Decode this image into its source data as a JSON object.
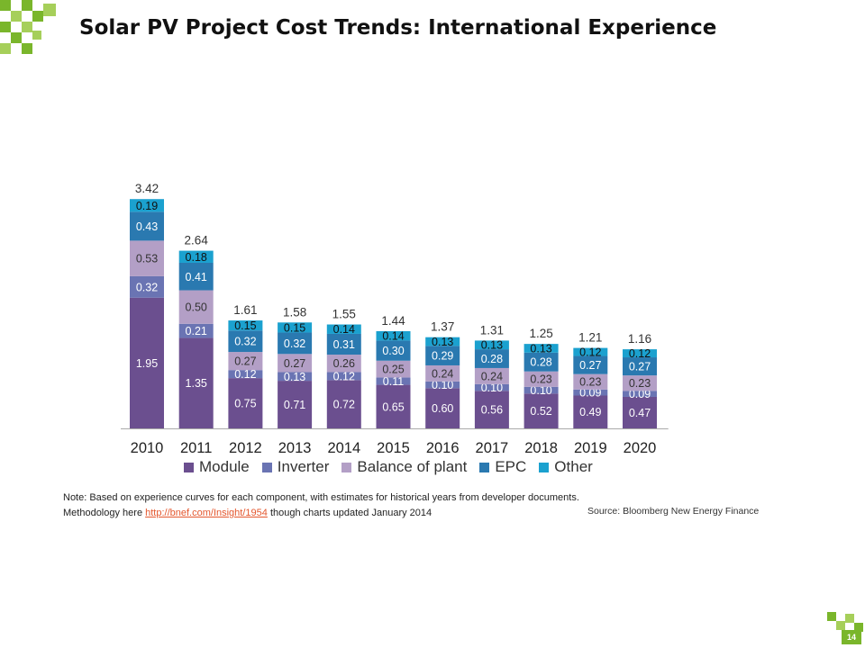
{
  "slide": {
    "title": "Solar PV Project Cost Trends: International Experience",
    "page_number": "14"
  },
  "note": {
    "text_before": "Note: Based on experience curves for each component, with estimates for historical years from developer documents. Methodology here ",
    "link": "http://bnef.com/Insight/1954",
    "text_after": " though charts updated January 2014"
  },
  "source": "Source: Bloomberg New Energy Finance",
  "colors": {
    "brand_green": "#7ab62b",
    "module": "#6b4f8f",
    "inverter": "#6a74b3",
    "balance_of_plant": "#b39fc6",
    "epc": "#2a79b0",
    "other": "#1ba1cf"
  },
  "chart_data": {
    "type": "bar",
    "stacked": true,
    "title": "",
    "xlabel": "",
    "ylabel": "",
    "categories": [
      "2010",
      "2011",
      "2012",
      "2013",
      "2014",
      "2015",
      "2016",
      "2017",
      "2018",
      "2019",
      "2020"
    ],
    "totals": [
      "3.42",
      "2.64",
      "1.61",
      "1.58",
      "1.55",
      "1.44",
      "1.37",
      "1.31",
      "1.25",
      "1.21",
      "1.16"
    ],
    "series": [
      {
        "name": "Module",
        "color": "#6b4f8f",
        "values": [
          1.95,
          1.35,
          0.75,
          0.71,
          0.72,
          0.65,
          0.6,
          0.56,
          0.52,
          0.49,
          0.47
        ]
      },
      {
        "name": "Inverter",
        "color": "#6a74b3",
        "values": [
          0.32,
          0.21,
          0.12,
          0.13,
          0.12,
          0.11,
          0.1,
          0.1,
          0.1,
          0.09,
          0.09
        ]
      },
      {
        "name": "Balance of plant",
        "color": "#b39fc6",
        "values": [
          0.53,
          0.5,
          0.27,
          0.27,
          0.26,
          0.25,
          0.24,
          0.24,
          0.23,
          0.23,
          0.23
        ]
      },
      {
        "name": "EPC",
        "color": "#2a79b0",
        "values": [
          0.43,
          0.41,
          0.32,
          0.32,
          0.31,
          0.3,
          0.29,
          0.28,
          0.28,
          0.27,
          0.27
        ]
      },
      {
        "name": "Other",
        "color": "#1ba1cf",
        "values": [
          0.19,
          0.18,
          0.15,
          0.15,
          0.14,
          0.14,
          0.13,
          0.13,
          0.13,
          0.12,
          0.12
        ]
      }
    ],
    "legend_position": "bottom",
    "grid": false
  }
}
